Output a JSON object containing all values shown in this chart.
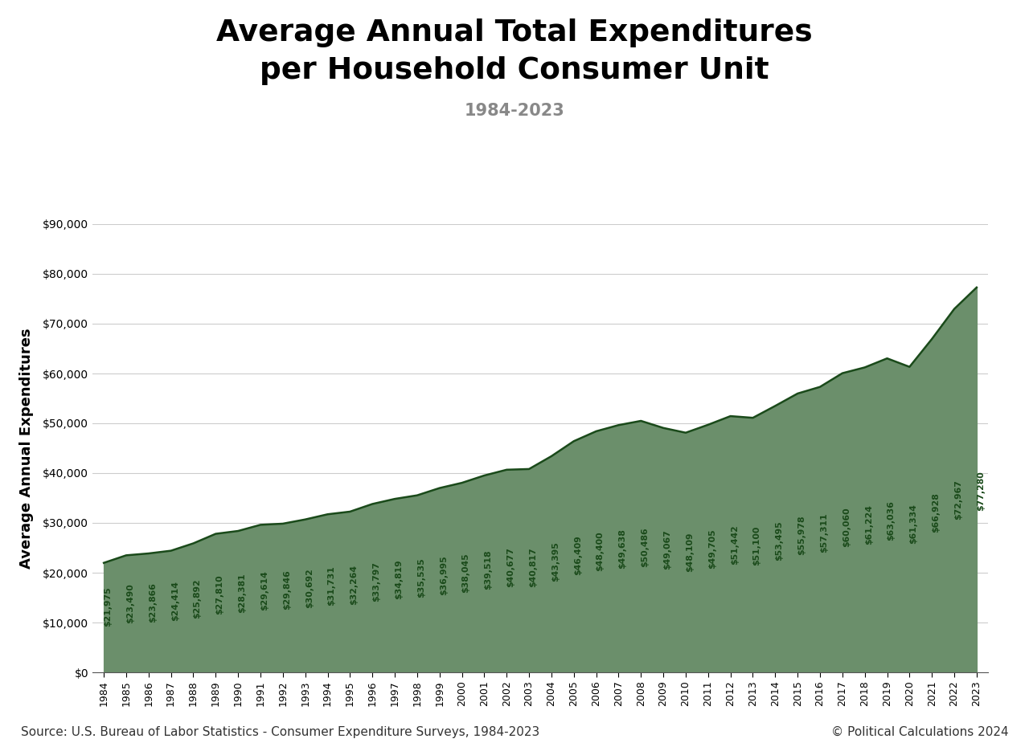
{
  "years": [
    1984,
    1985,
    1986,
    1987,
    1988,
    1989,
    1990,
    1991,
    1992,
    1993,
    1994,
    1995,
    1996,
    1997,
    1998,
    1999,
    2000,
    2001,
    2002,
    2003,
    2004,
    2005,
    2006,
    2007,
    2008,
    2009,
    2010,
    2011,
    2012,
    2013,
    2014,
    2015,
    2016,
    2017,
    2018,
    2019,
    2020,
    2021,
    2022,
    2023
  ],
  "values": [
    21975,
    23490,
    23866,
    24414,
    25892,
    27810,
    28381,
    29614,
    29846,
    30692,
    31731,
    32264,
    33797,
    34819,
    35535,
    36995,
    38045,
    39518,
    40677,
    40817,
    43395,
    46409,
    48400,
    49638,
    50486,
    49067,
    48109,
    49705,
    51442,
    51100,
    53495,
    55978,
    57311,
    60060,
    61224,
    63036,
    61334,
    66928,
    72967,
    77280
  ],
  "fill_color": "#6b8f6b",
  "line_color": "#1a4a1a",
  "title_line1": "Average Annual Total Expenditures",
  "title_line2": "per Household Consumer Unit",
  "subtitle": "1984-2023",
  "ylabel": "Average Annual Expenditures",
  "source_left": "Source: U.S. Bureau of Labor Statistics - Consumer Expenditure Surveys, 1984-2023",
  "source_right": "© Political Calculations 2024",
  "bg_color": "#ffffff",
  "ylim": [
    0,
    90000
  ],
  "yticks": [
    0,
    10000,
    20000,
    30000,
    40000,
    50000,
    60000,
    70000,
    80000,
    90000
  ],
  "label_color": "#1a4a1a",
  "label_fontsize": 7.8,
  "title_fontsize": 27,
  "subtitle_fontsize": 15,
  "ylabel_fontsize": 13,
  "footer_fontsize": 11
}
